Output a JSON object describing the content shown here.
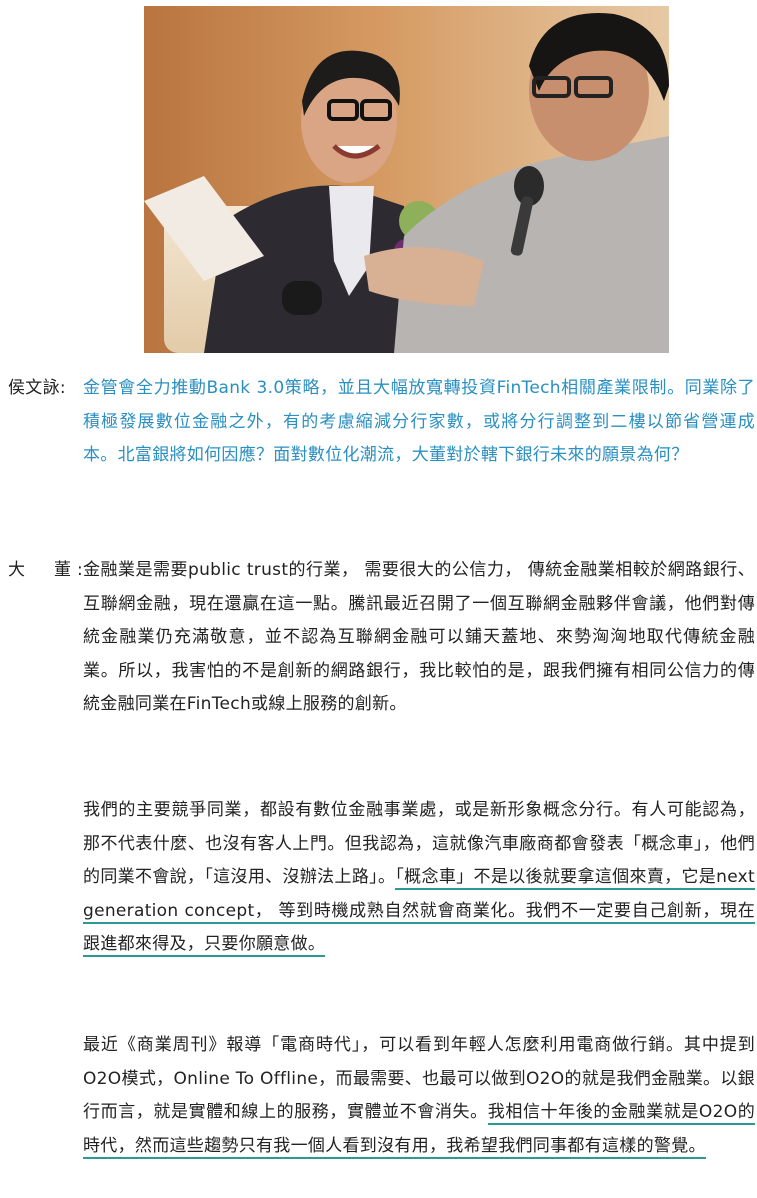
{
  "question": {
    "speaker": "侯文詠:",
    "text": "金管會全力推動Bank 3.0策略，並且大幅放寬轉投資FinTech相關產業限制。同業除了積極發展數位金融之外，有的考慮縮減分行家數，或將分行調整到二樓以節省營運成本。北富銀將如何因應？面對數位化潮流，大董對於轄下銀行未來的願景為何？"
  },
  "answer": {
    "speaker": "大　董:",
    "p1": "金融業是需要public trust的行業， 需要很大的公信力， 傳統金融業相較於網路銀行、互聯網金融，現在還贏在這一點。騰訊最近召開了一個互聯網金融夥伴會議，他們對傳統金融業仍充滿敬意，並不認為互聯網金融可以鋪天蓋地、來勢洶洶地取代傳統金融業。所以，我害怕的不是創新的網路銀行，我比較怕的是，跟我們擁有相同公信力的傳統金融同業在FinTech或線上服務的創新。",
    "p2_plain": "我們的主要競爭同業，都設有數位金融事業處，或是新形象概念分行。有人可能認為，那不代表什麼、也沒有客人上門。但我認為，這就像汽車廠商都會發表「概念車」，他們的同業不會說，「這沒用、沒辦法上路」。",
    "p2_highlight": "「概念車」不是以後就要拿這個來賣，它是next generation concept， 等到時機成熟自然就會商業化。我們不一定要自己創新，現在跟進都來得及，只要你願意做。",
    "p3_plain": "最近《商業周刊》報導「電商時代」，可以看到年輕人怎麼利用電商做行銷。其中提到O2O模式，Online To Offline，而最需要、也最可以做到O2O的就是我們金融業。以銀行而言，就是實體和線上的服務，實體並不會消失。",
    "p3_highlight": "我相信十年後的金融業就是O2O的時代，然而這些趨勢只有我一個人看到沒有用，我希望我們同事都有這樣的警覺。"
  },
  "colors": {
    "question": "#2a8fc1",
    "highlight_underline": "#2c9a93",
    "body": "#222222"
  }
}
